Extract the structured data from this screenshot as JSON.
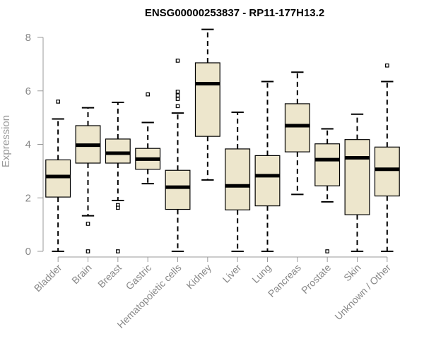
{
  "chart_data": {
    "type": "boxplot",
    "title": "ENSG00000253837 - RP11-177H13.2",
    "ylabel": "Expression",
    "ylim": [
      0,
      8
    ],
    "yticks": [
      0,
      2,
      4,
      6,
      8
    ],
    "box_fill": "#ede6cc",
    "median_color": "#000000",
    "categories": [
      "Bladder",
      "Brain",
      "Breast",
      "Gastric",
      "Hematopoietic cells",
      "Kidney",
      "Liver",
      "Lung",
      "Pancreas",
      "Prostate",
      "Skin",
      "Unknown / Other"
    ],
    "boxes": [
      {
        "min": 0.0,
        "q1": 2.03,
        "median": 2.8,
        "q3": 3.42,
        "max": 4.95,
        "outliers": [
          5.6
        ]
      },
      {
        "min": 1.33,
        "q1": 3.3,
        "median": 3.97,
        "q3": 4.7,
        "max": 5.37,
        "outliers": [
          1.03,
          0.0
        ]
      },
      {
        "min": 1.9,
        "q1": 3.3,
        "median": 3.67,
        "q3": 4.2,
        "max": 5.57,
        "outliers": [
          1.73,
          1.63,
          0.0
        ]
      },
      {
        "min": 2.53,
        "q1": 3.07,
        "median": 3.45,
        "q3": 3.85,
        "max": 4.82,
        "outliers": [
          5.87
        ]
      },
      {
        "min": 0.0,
        "q1": 1.57,
        "median": 2.4,
        "q3": 3.03,
        "max": 5.17,
        "outliers": [
          5.43,
          5.7,
          5.83,
          5.97,
          7.13
        ]
      },
      {
        "min": 2.67,
        "q1": 4.3,
        "median": 6.27,
        "q3": 7.05,
        "max": 8.3,
        "outliers": []
      },
      {
        "min": 0.0,
        "q1": 1.55,
        "median": 2.45,
        "q3": 3.83,
        "max": 5.2,
        "outliers": []
      },
      {
        "min": 0.0,
        "q1": 1.7,
        "median": 2.83,
        "q3": 3.58,
        "max": 6.35,
        "outliers": []
      },
      {
        "min": 2.13,
        "q1": 3.72,
        "median": 4.7,
        "q3": 5.52,
        "max": 6.7,
        "outliers": []
      },
      {
        "min": 1.85,
        "q1": 2.45,
        "median": 3.43,
        "q3": 4.02,
        "max": 4.58,
        "outliers": [
          0.0
        ]
      },
      {
        "min": 0.0,
        "q1": 1.37,
        "median": 3.5,
        "q3": 4.18,
        "max": 5.13,
        "outliers": []
      },
      {
        "min": 0.0,
        "q1": 2.07,
        "median": 3.07,
        "q3": 3.9,
        "max": 6.35,
        "outliers": [
          6.95
        ]
      }
    ]
  }
}
